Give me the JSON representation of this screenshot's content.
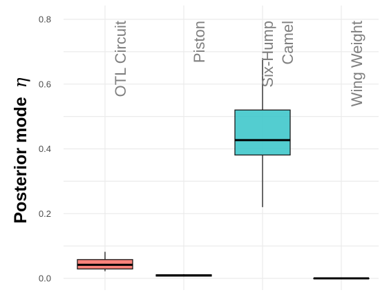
{
  "chart_data": {
    "type": "box",
    "ylabel": "Posterior mode",
    "ylabel_symbol": "η",
    "ylim": [
      0,
      0.8
    ],
    "yticks": [
      0.0,
      0.2,
      0.4,
      0.6,
      0.8
    ],
    "ytick_labels": [
      "0.0",
      "0.2",
      "0.4",
      "0.6",
      "0.8"
    ],
    "grid": true,
    "categories": [
      {
        "name": "OTL Circuit",
        "lines": [
          "OTL Circuit"
        ],
        "color": "#F8766D",
        "min": 0.022,
        "q1": 0.029,
        "median": 0.042,
        "q3": 0.058,
        "max": 0.082
      },
      {
        "name": "Piston",
        "lines": [
          "Piston"
        ],
        "color": "#7CAE00",
        "min": 0.006,
        "q1": 0.007,
        "median": 0.009,
        "q3": 0.011,
        "max": 0.013
      },
      {
        "name": "Six-Hump Camel",
        "lines": [
          "Six-Hump",
          "Camel"
        ],
        "color": "#40C8CB",
        "min": 0.22,
        "q1": 0.381,
        "median": 0.427,
        "q3": 0.52,
        "max": 0.68
      },
      {
        "name": "Wing Weight",
        "lines": [
          "Wing Weight"
        ],
        "color": "#C77CFF",
        "min": 0.0,
        "q1": 0.0,
        "median": 0.0,
        "q3": 0.0,
        "max": 0.0
      }
    ]
  }
}
